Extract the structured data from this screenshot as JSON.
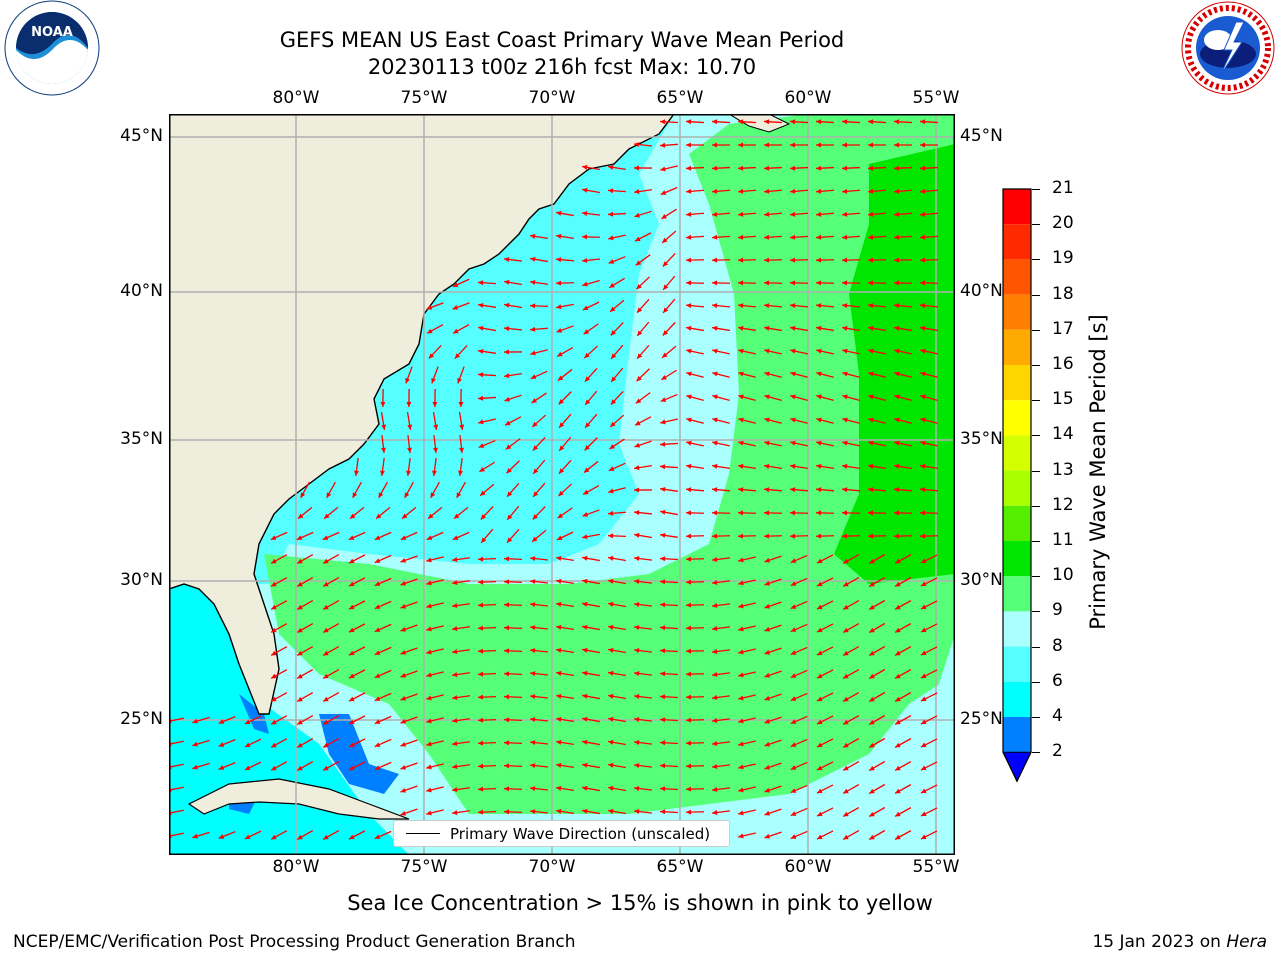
{
  "title": {
    "line1": "GEFS MEAN US East Coast Primary Wave Mean Period",
    "line2": "20230113 t00z 216h fcst   Max: 10.70"
  },
  "logos": {
    "left": "noaa-logo",
    "left_text": "NOAA",
    "right": "nws-logo",
    "right_text": "NATIONAL WEATHER SERVICE",
    "left_ring_text": "NATIONAL OCEANIC AND ATMOSPHERIC ADMINISTRATION · U.S. DEPARTMENT OF COMMERCE"
  },
  "map": {
    "lon_ticks": [
      "80°W",
      "75°W",
      "70°W",
      "65°W",
      "60°W",
      "55°W"
    ],
    "lat_ticks": [
      "45°N",
      "40°N",
      "35°N",
      "30°N",
      "25°N"
    ],
    "legend_label": "Primary Wave Direction (unscaled)",
    "land_color": "#efeddc",
    "arrow_color": "#ff0000",
    "grid_color": "#b0b0b0"
  },
  "colorbar": {
    "title": "Primary Wave Mean Period [s]",
    "ticks": [
      "21",
      "20",
      "19",
      "18",
      "17",
      "16",
      "15",
      "14",
      "13",
      "12",
      "11",
      "10",
      "9",
      "8",
      "6",
      "4",
      "2"
    ],
    "colors": [
      "#ff0000",
      "#ff2a00",
      "#ff5500",
      "#ff8000",
      "#ffaa00",
      "#ffd500",
      "#ffff00",
      "#d4ff00",
      "#aaff00",
      "#55ee00",
      "#00e600",
      "#55ff77",
      "#aaffff",
      "#55ffff",
      "#00ffff",
      "#0080ff"
    ],
    "extend_color": "#0000ff"
  },
  "note": "Sea Ice Concentration > 15% is shown in pink to yellow",
  "footer": {
    "left": "NCEP/EMC/Verification Post Processing Product Generation Branch",
    "right_date": "15 Jan 2023 on ",
    "right_host": "Hera"
  }
}
